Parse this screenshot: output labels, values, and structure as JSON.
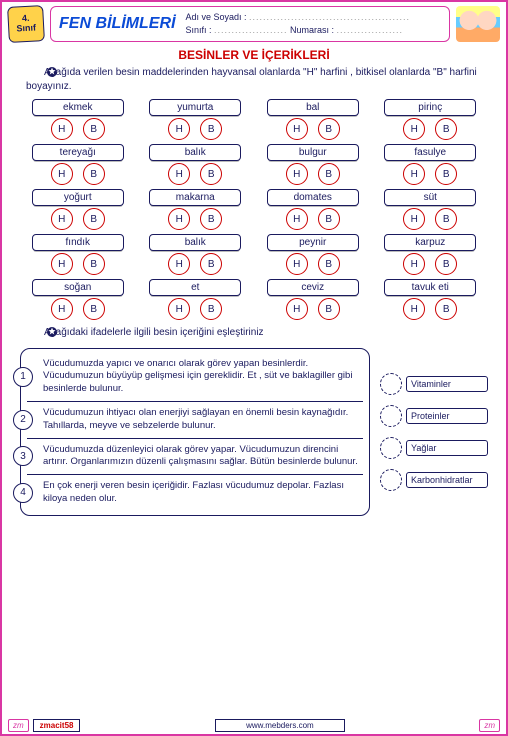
{
  "header": {
    "grade_num": "4.",
    "grade_txt": "Sınıf",
    "title": "FEN BİLİMLERİ",
    "name_label": "Adı ve Soyadı :",
    "class_label": "Sınıfı :",
    "number_label": "Numarası :"
  },
  "section_title": "BESİNLER  VE  İÇERİKLERİ",
  "instruction1": "Aşağıda verilen besin maddelerinden hayvansal olanlarda \"H\" harfini , bitkisel olanlarda  \"B\" harfini boyayınız.",
  "h_letter": "H",
  "b_letter": "B",
  "foods": [
    "ekmek",
    "yumurta",
    "bal",
    "pirinç",
    "tereyağı",
    "balık",
    "bulgur",
    "fasulye",
    "yoğurt",
    "makarna",
    "domates",
    "süt",
    "fındık",
    "balık",
    "peynir",
    "karpuz",
    "soğan",
    "et",
    "ceviz",
    "tavuk eti"
  ],
  "instruction2": "Aşağıdaki ifadelerle ilgili besin içeriğini eşleştiriniz",
  "descriptions": [
    {
      "n": "1",
      "t": "Vücudumuzda yapıcı ve onarıcı olarak görev yapan besinlerdir. Vücudumuzun büyüyüp gelişmesi için gereklidir. Et , süt ve baklagiller gibi besinlerde bulunur."
    },
    {
      "n": "2",
      "t": "Vücudumuzun ihtiyacı olan enerjiyi sağlayan en önemli besin kaynağıdır. Tahıllarda, meyve ve sebzelerde bulunur."
    },
    {
      "n": "3",
      "t": "Vücudumuzda düzenleyici olarak görev yapar. Vücudumuzun direncini artırır. Organlarımızın düzenli çalışmasını sağlar. Bütün besinlerde bulunur."
    },
    {
      "n": "4",
      "t": "En çok enerji veren besin içeriğidir. Fazlası vücudumuz depolar. Fazlası kiloya neden olur."
    }
  ],
  "answers": [
    "Vitaminler",
    "Proteinler",
    "Yağlar",
    "Karbonhidratlar"
  ],
  "footer": {
    "zm": "zm",
    "code": "zmacit58",
    "site": "www.mebders.com"
  }
}
